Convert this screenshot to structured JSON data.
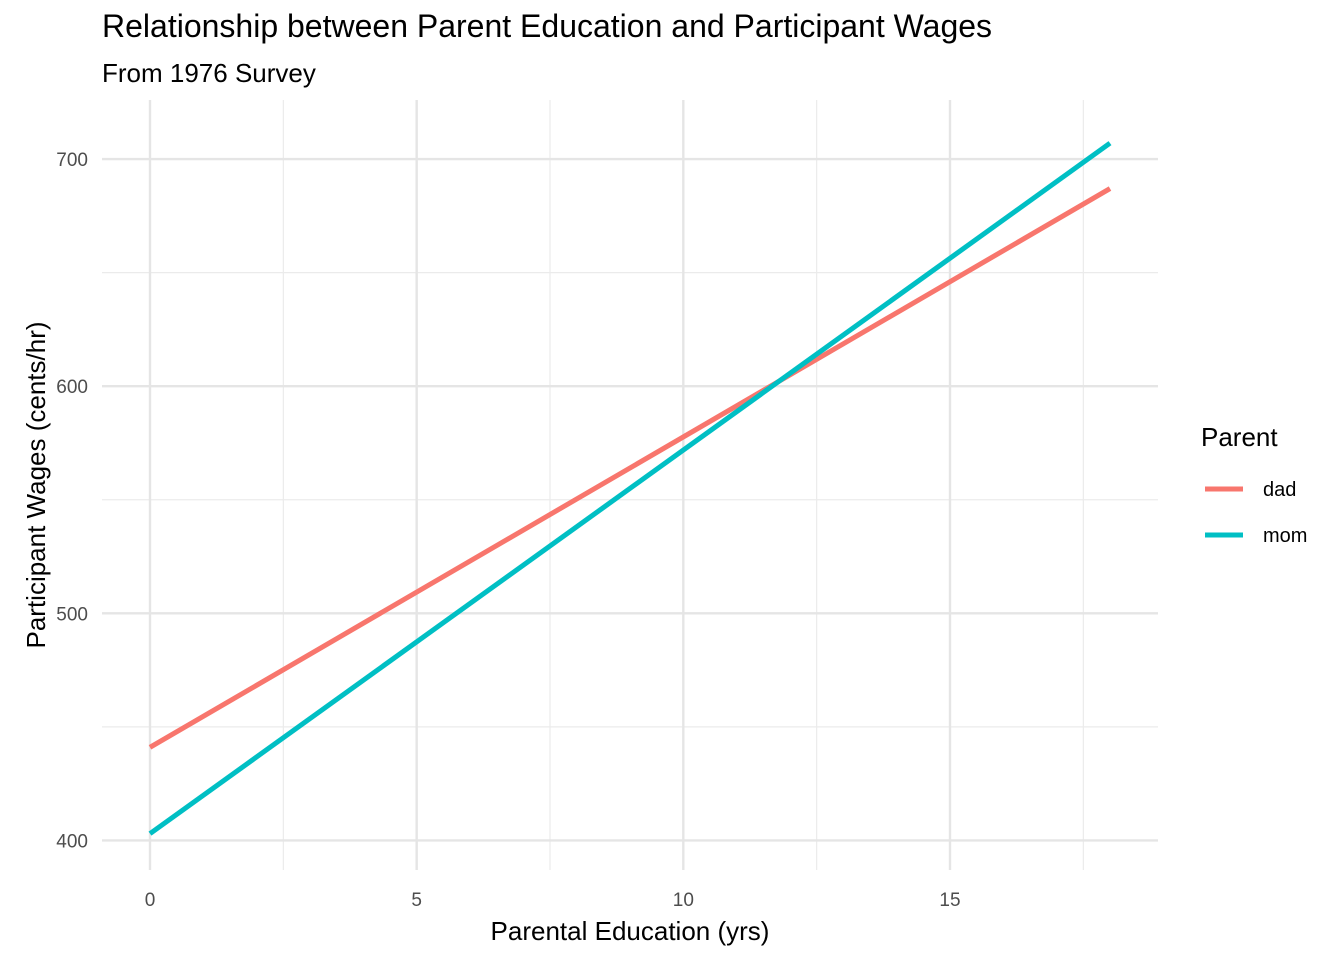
{
  "chart_data": {
    "type": "line",
    "title": "Relationship between Parent Education and Participant Wages",
    "subtitle": "From 1976 Survey",
    "xlabel": "Parental Education (yrs)",
    "ylabel": "Participant Wages (cents/hr)",
    "xlim": [
      -0.9,
      18.9
    ],
    "ylim": [
      387,
      726
    ],
    "x_ticks": [
      0,
      5,
      10,
      15
    ],
    "y_ticks": [
      400,
      500,
      600,
      700
    ],
    "x_minor_ticks": [
      2.5,
      7.5,
      12.5,
      17.5
    ],
    "y_minor_ticks": [
      450,
      550,
      650
    ],
    "grid": true,
    "legend": {
      "title": "Parent",
      "placement": "right"
    },
    "series": [
      {
        "name": "dad",
        "color": "#F8766D",
        "x": [
          0,
          18
        ],
        "y": [
          441,
          687
        ]
      },
      {
        "name": "mom",
        "color": "#00BFC4",
        "x": [
          0,
          18
        ],
        "y": [
          403,
          707
        ]
      }
    ]
  }
}
